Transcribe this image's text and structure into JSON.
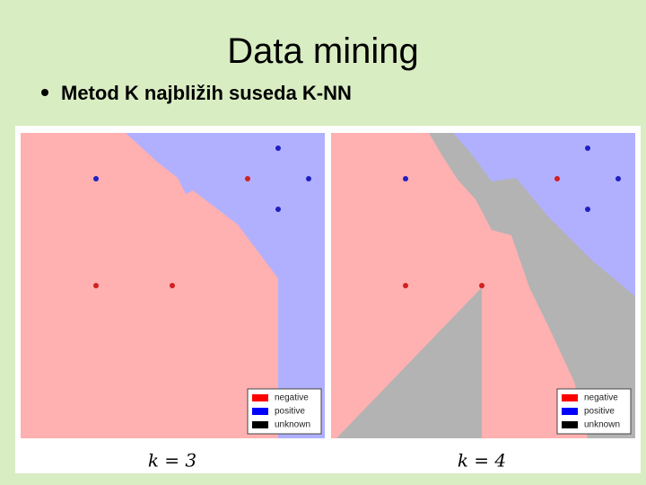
{
  "header": {
    "title": "Data mining"
  },
  "bullets": [
    "Metod K najbližih suseda K-NN"
  ],
  "panels": [
    {
      "label": "k = 3",
      "legend": [
        "negative",
        "positive",
        "unknown"
      ]
    },
    {
      "label": "k = 4",
      "legend": [
        "negative",
        "positive",
        "unknown"
      ]
    }
  ]
}
